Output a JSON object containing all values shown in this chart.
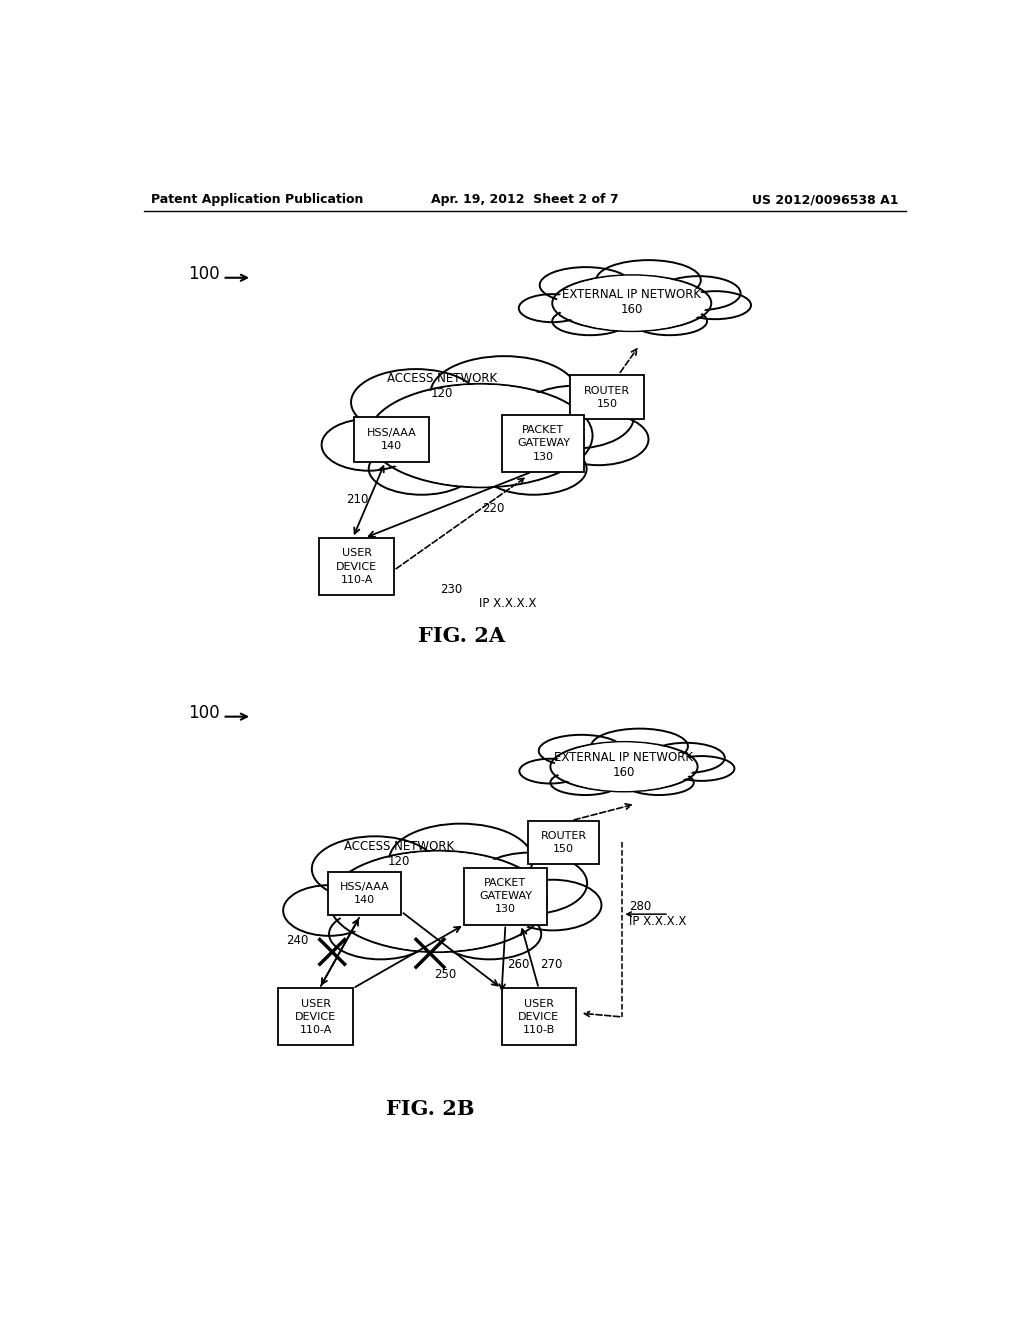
{
  "background_color": "#ffffff",
  "header_left": "Patent Application Publication",
  "header_mid": "Apr. 19, 2012  Sheet 2 of 7",
  "header_right": "US 2012/0096538 A1",
  "fig2a_label": "FIG. 2A",
  "fig2b_label": "FIG. 2B"
}
